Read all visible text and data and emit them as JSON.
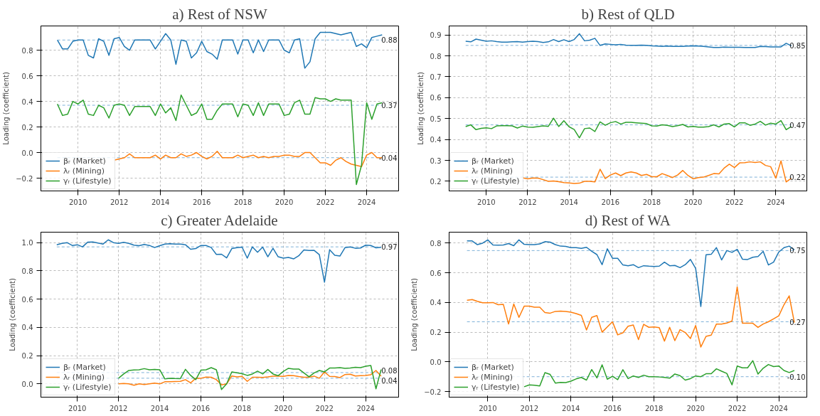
{
  "chart_data": [
    {
      "type": "line",
      "title": "a) Rest of NSW",
      "ylabel": "Loading (coefficient)",
      "grid": true,
      "legend": "bottom left",
      "marker": "none",
      "line_style": "solid",
      "xlim": [
        2008.2,
        2025.55
      ],
      "xticks": [
        2010,
        2012,
        2014,
        2016,
        2018,
        2020,
        2022,
        2024
      ],
      "ylim": [
        -0.3,
        0.99
      ],
      "yticks": [
        {
          "value": -0.2,
          "label": "−0.2"
        },
        {
          "value": 0,
          "label": "0.0"
        },
        0.2,
        0.4,
        0.6,
        0.8
      ],
      "x": [
        2009,
        2009.25,
        2009.5,
        2009.75,
        2010,
        2010.25,
        2010.5,
        2010.75,
        2011,
        2011.25,
        2011.5,
        2011.75,
        2012,
        2012.25,
        2012.5,
        2012.75,
        2013,
        2013.25,
        2013.5,
        2013.75,
        2014,
        2014.25,
        2014.5,
        2014.75,
        2015,
        2015.25,
        2015.5,
        2015.75,
        2016,
        2016.25,
        2016.5,
        2016.75,
        2017,
        2017.25,
        2017.5,
        2017.75,
        2018,
        2018.25,
        2018.5,
        2018.75,
        2019,
        2019.25,
        2019.5,
        2019.75,
        2020,
        2020.25,
        2020.5,
        2020.75,
        2021,
        2021.25,
        2021.5,
        2021.75,
        2022,
        2022.25,
        2022.5,
        2022.75,
        2023,
        2023.25,
        2023.5,
        2023.75,
        2024,
        2024.25,
        2024.5,
        2024.75
      ],
      "series": [
        {
          "name": "βᵣ (Market)",
          "color": "#1f77b4",
          "values": [
            0.88,
            0.81,
            0.81,
            0.87,
            0.88,
            0.88,
            0.76,
            0.74,
            0.89,
            0.87,
            0.76,
            0.89,
            0.9,
            0.83,
            0.8,
            0.88,
            0.88,
            0.88,
            0.88,
            0.81,
            0.87,
            0.93,
            0.88,
            0.69,
            0.88,
            0.87,
            0.74,
            0.78,
            0.87,
            0.79,
            0.77,
            0.73,
            0.88,
            0.88,
            0.88,
            0.77,
            0.88,
            0.88,
            0.78,
            0.88,
            0.79,
            0.88,
            0.88,
            0.88,
            0.8,
            0.78,
            0.88,
            0.89,
            0.66,
            0.71,
            0.89,
            0.94,
            0.94,
            0.94,
            0.93,
            0.92,
            0.93,
            0.94,
            0.83,
            0.85,
            0.82,
            0.9,
            0.91,
            0.92
          ]
        },
        {
          "name": "λᵣ (Mining)",
          "color": "#ff7f0e",
          "values": [
            null,
            null,
            null,
            null,
            null,
            null,
            null,
            null,
            null,
            null,
            null,
            -0.06,
            -0.05,
            -0.04,
            -0.01,
            -0.04,
            -0.04,
            -0.04,
            -0.04,
            -0.02,
            -0.05,
            -0.02,
            -0.04,
            -0.04,
            -0.01,
            -0.03,
            -0.02,
            0.0,
            -0.03,
            -0.05,
            -0.03,
            0.01,
            -0.04,
            -0.04,
            -0.04,
            -0.02,
            -0.04,
            -0.03,
            -0.02,
            -0.04,
            -0.03,
            -0.04,
            -0.03,
            -0.03,
            -0.02,
            -0.02,
            -0.03,
            -0.03,
            0.0,
            0.0,
            -0.04,
            -0.08,
            -0.08,
            -0.1,
            -0.06,
            -0.04,
            -0.07,
            -0.09,
            -0.1,
            -0.11,
            -0.02,
            0.0,
            -0.04,
            -0.04
          ]
        },
        {
          "name": "γᵣ (Lifestyle)",
          "color": "#2ca02c",
          "values": [
            0.38,
            0.29,
            0.3,
            0.4,
            0.38,
            0.41,
            0.3,
            0.29,
            0.37,
            0.35,
            0.27,
            0.37,
            0.38,
            0.37,
            0.29,
            0.36,
            0.36,
            0.36,
            0.36,
            0.29,
            0.38,
            0.31,
            0.35,
            0.25,
            0.45,
            0.37,
            0.29,
            0.31,
            0.38,
            0.26,
            0.26,
            0.33,
            0.38,
            0.38,
            0.38,
            0.28,
            0.38,
            0.37,
            0.29,
            0.39,
            0.29,
            0.38,
            0.38,
            0.38,
            0.29,
            0.3,
            0.39,
            0.41,
            0.3,
            0.3,
            0.43,
            0.42,
            0.42,
            0.4,
            0.42,
            0.41,
            0.41,
            0.41,
            -0.25,
            -0.1,
            0.39,
            0.26,
            0.38,
            0.39
          ]
        }
      ],
      "ref_lines": [
        {
          "axis": "y",
          "value": 0.88,
          "label": "0.88",
          "color": "#7fb2d8",
          "line_style": "dashed"
        },
        {
          "axis": "y",
          "value": 0.37,
          "label": "0.37",
          "color": "#7fb2d8",
          "line_style": "dashed"
        },
        {
          "axis": "y",
          "value": -0.04,
          "label": "-0.04",
          "color": "#7fb2d8",
          "line_style": "dashed"
        }
      ]
    },
    {
      "type": "line",
      "title": "b) Rest of QLD",
      "ylabel": "Loading (coefficient)",
      "grid": true,
      "legend": "bottom left",
      "marker": "none",
      "line_style": "solid",
      "xlim": [
        2008.2,
        2025.5
      ],
      "xticks": [
        2010,
        2012,
        2014,
        2016,
        2018,
        2020,
        2022,
        2024
      ],
      "ylim": [
        0.154,
        0.943
      ],
      "yticks": [
        0.2,
        0.3,
        0.4,
        0.5,
        0.6,
        0.7,
        0.8,
        0.9
      ],
      "x": [
        2009,
        2009.25,
        2009.5,
        2009.75,
        2010,
        2010.25,
        2010.5,
        2010.75,
        2011,
        2011.25,
        2011.5,
        2011.75,
        2012,
        2012.25,
        2012.5,
        2012.75,
        2013,
        2013.25,
        2013.5,
        2013.75,
        2014,
        2014.25,
        2014.5,
        2014.75,
        2015,
        2015.25,
        2015.5,
        2015.75,
        2016,
        2016.25,
        2016.5,
        2016.75,
        2017,
        2017.25,
        2017.5,
        2017.75,
        2018,
        2018.25,
        2018.5,
        2018.75,
        2019,
        2019.25,
        2019.5,
        2019.75,
        2020,
        2020.25,
        2020.5,
        2020.75,
        2021,
        2021.25,
        2021.5,
        2021.75,
        2022,
        2022.25,
        2022.5,
        2022.75,
        2023,
        2023.25,
        2023.5,
        2023.75,
        2024,
        2024.25,
        2024.5,
        2024.75
      ],
      "series": [
        {
          "name": "βᵣ (Market)",
          "color": "#1f77b4",
          "values": [
            0.87,
            0.867,
            0.88,
            0.875,
            0.87,
            0.872,
            0.868,
            0.866,
            0.866,
            0.867,
            0.868,
            0.866,
            0.868,
            0.87,
            0.868,
            0.864,
            0.867,
            0.878,
            0.868,
            0.877,
            0.868,
            0.878,
            0.906,
            0.872,
            0.875,
            0.884,
            0.85,
            0.857,
            0.855,
            0.853,
            0.855,
            0.851,
            0.85,
            0.85,
            0.851,
            0.85,
            0.848,
            0.847,
            0.845,
            0.847,
            0.845,
            0.845,
            0.845,
            0.847,
            0.848,
            0.847,
            0.845,
            0.843,
            0.84,
            0.84,
            0.842,
            0.841,
            0.841,
            0.841,
            0.84,
            0.84,
            0.84,
            0.845,
            0.844,
            0.843,
            0.843,
            0.843,
            0.86,
            0.848
          ]
        },
        {
          "name": "λᵣ (Mining)",
          "color": "#ff7f0e",
          "values": [
            null,
            null,
            null,
            null,
            null,
            null,
            null,
            null,
            null,
            null,
            null,
            0.217,
            0.212,
            0.216,
            0.215,
            0.208,
            0.2,
            0.202,
            0.198,
            0.194,
            0.192,
            0.19,
            0.191,
            0.2,
            0.2,
            0.197,
            0.258,
            0.213,
            0.23,
            0.24,
            0.227,
            0.24,
            0.245,
            0.24,
            0.228,
            0.233,
            0.222,
            0.222,
            0.237,
            0.228,
            0.218,
            0.23,
            0.252,
            0.228,
            0.212,
            0.218,
            0.22,
            0.228,
            0.237,
            0.236,
            0.263,
            0.282,
            0.266,
            0.288,
            0.289,
            0.293,
            0.29,
            0.293,
            0.276,
            0.27,
            0.215,
            0.298,
            0.197,
            0.215
          ]
        },
        {
          "name": "γᵣ (Lifestyle)",
          "color": "#2ca02c",
          "values": [
            0.462,
            0.47,
            0.447,
            0.453,
            0.456,
            0.452,
            0.465,
            0.466,
            0.466,
            0.465,
            0.455,
            0.464,
            0.459,
            0.458,
            0.462,
            0.465,
            0.463,
            0.502,
            0.462,
            0.49,
            0.461,
            0.448,
            0.408,
            0.452,
            0.455,
            0.438,
            0.484,
            0.468,
            0.48,
            0.486,
            0.474,
            0.482,
            0.482,
            0.48,
            0.478,
            0.476,
            0.465,
            0.464,
            0.47,
            0.468,
            0.462,
            0.466,
            0.472,
            0.46,
            0.463,
            0.459,
            0.459,
            0.462,
            0.47,
            0.46,
            0.474,
            0.476,
            0.46,
            0.48,
            0.48,
            0.468,
            0.474,
            0.487,
            0.469,
            0.478,
            0.474,
            0.49,
            0.447,
            0.462
          ]
        }
      ],
      "ref_lines": [
        {
          "axis": "y",
          "value": 0.85,
          "label": "0.85",
          "color": "#7fb2d8",
          "line_style": "dashed"
        },
        {
          "axis": "y",
          "value": 0.47,
          "label": "0.47",
          "color": "#7fb2d8",
          "line_style": "dashed"
        },
        {
          "axis": "y",
          "value": 0.22,
          "label": "0.22",
          "color": "#7fb2d8",
          "line_style": "dashed"
        }
      ]
    },
    {
      "type": "line",
      "title": "c) Greater Adelaide",
      "ylabel": "Loading (coefficient)",
      "grid": true,
      "legend": "bottom left",
      "marker": "none",
      "line_style": "solid",
      "xlim": [
        2008.23,
        2025.6
      ],
      "xticks": [
        2010,
        2012,
        2014,
        2016,
        2018,
        2020,
        2022,
        2024
      ],
      "ylim": [
        -0.094,
        1.074
      ],
      "yticks": [
        {
          "value": 0,
          "label": "0.0"
        },
        0.2,
        0.4,
        0.6,
        0.8,
        {
          "value": 1,
          "label": "1.0"
        }
      ],
      "x": [
        2009,
        2009.25,
        2009.5,
        2009.75,
        2010,
        2010.25,
        2010.5,
        2010.75,
        2011,
        2011.25,
        2011.5,
        2011.75,
        2012,
        2012.25,
        2012.5,
        2012.75,
        2013,
        2013.25,
        2013.5,
        2013.75,
        2014,
        2014.25,
        2014.5,
        2014.75,
        2015,
        2015.25,
        2015.5,
        2015.75,
        2016,
        2016.25,
        2016.5,
        2016.75,
        2017,
        2017.25,
        2017.5,
        2017.75,
        2018,
        2018.25,
        2018.5,
        2018.75,
        2019,
        2019.25,
        2019.5,
        2019.75,
        2020,
        2020.25,
        2020.5,
        2020.75,
        2021,
        2021.25,
        2021.5,
        2021.75,
        2022,
        2022.25,
        2022.5,
        2022.75,
        2023,
        2023.25,
        2023.5,
        2023.75,
        2024,
        2024.25,
        2024.5,
        2024.75
      ],
      "series": [
        {
          "name": "βᵣ (Market)",
          "color": "#1f77b4",
          "values": [
            0.985,
            0.995,
            1.0,
            0.98,
            0.985,
            0.97,
            1.003,
            1.005,
            0.997,
            0.99,
            1.02,
            1.0,
            0.995,
            1.002,
            0.995,
            0.982,
            0.978,
            0.987,
            0.98,
            0.965,
            0.978,
            0.99,
            0.992,
            0.99,
            0.99,
            0.985,
            0.953,
            0.958,
            0.98,
            0.98,
            0.965,
            0.917,
            0.918,
            0.892,
            0.958,
            0.965,
            0.968,
            0.89,
            0.97,
            0.932,
            0.968,
            0.9,
            0.96,
            0.9,
            0.89,
            0.895,
            0.885,
            0.907,
            0.948,
            0.944,
            0.945,
            0.915,
            0.72,
            0.95,
            0.91,
            0.905,
            0.965,
            0.97,
            0.96,
            0.962,
            0.982,
            0.98,
            0.963,
            0.967
          ]
        },
        {
          "name": "λᵣ (Mining)",
          "color": "#ff7f0e",
          "values": [
            null,
            null,
            null,
            null,
            null,
            null,
            null,
            null,
            null,
            null,
            null,
            null,
            0.0,
            0.003,
            0.0,
            -0.01,
            0.0,
            -0.005,
            0.0,
            0.005,
            0.0,
            0.015,
            0.015,
            0.017,
            0.018,
            0.03,
            0.007,
            0.04,
            0.04,
            0.048,
            0.047,
            0.03,
            -0.007,
            0.0,
            0.056,
            0.05,
            0.053,
            0.018,
            0.047,
            0.047,
            0.046,
            0.05,
            0.055,
            0.055,
            0.053,
            0.06,
            0.058,
            0.052,
            0.047,
            0.047,
            0.055,
            0.04,
            0.085,
            0.053,
            0.052,
            0.045,
            0.066,
            0.068,
            0.056,
            0.058,
            0.06,
            0.065,
            0.095,
            0.055
          ]
        },
        {
          "name": "γᵣ (Lifestyle)",
          "color": "#2ca02c",
          "values": [
            null,
            null,
            null,
            null,
            null,
            null,
            null,
            null,
            null,
            null,
            null,
            null,
            0.04,
            0.07,
            0.095,
            0.098,
            0.1,
            0.108,
            0.1,
            0.102,
            0.1,
            0.035,
            0.04,
            0.038,
            0.037,
            0.103,
            0.06,
            0.03,
            0.097,
            0.1,
            0.115,
            0.1,
            -0.04,
            0.0,
            0.085,
            0.078,
            0.072,
            0.06,
            0.07,
            0.09,
            0.07,
            0.102,
            0.07,
            0.058,
            0.088,
            0.11,
            0.105,
            0.105,
            0.078,
            0.05,
            0.078,
            0.095,
            0.085,
            0.112,
            0.113,
            0.115,
            0.11,
            0.112,
            0.118,
            0.115,
            0.125,
            0.13,
            -0.035,
            0.102
          ]
        }
      ],
      "ref_lines": [
        {
          "axis": "y",
          "value": 0.97,
          "label": "0.97",
          "color": "#7fb2d8",
          "line_style": "dashed"
        },
        {
          "axis": "y",
          "value": 0.08,
          "label": "0.08",
          "color": "#7fb2d8",
          "line_style": "dashed"
        },
        {
          "axis": "y",
          "value": 0.04,
          "label": "0.04",
          "color": "#7fb2d8",
          "line_style": "dashed"
        }
      ]
    },
    {
      "type": "line",
      "title": "d) Rest of WA",
      "ylabel": "Loading (coefficient)",
      "grid": true,
      "legend": "bottom left",
      "marker": "none",
      "line_style": "solid",
      "xlim": [
        2008.14,
        2025.35
      ],
      "xticks": [
        2010,
        2012,
        2014,
        2016,
        2018,
        2020,
        2022,
        2024
      ],
      "ylim": [
        -0.238,
        0.874
      ],
      "yticks": [
        {
          "value": -0.2,
          "label": "−0.2"
        },
        {
          "value": 0,
          "label": "0.0"
        },
        0.2,
        0.4,
        0.6,
        0.8
      ],
      "x": [
        2009,
        2009.25,
        2009.5,
        2009.75,
        2010,
        2010.25,
        2010.5,
        2010.75,
        2011,
        2011.25,
        2011.5,
        2011.75,
        2012,
        2012.25,
        2012.5,
        2012.75,
        2013,
        2013.25,
        2013.5,
        2013.75,
        2014,
        2014.25,
        2014.5,
        2014.75,
        2015,
        2015.25,
        2015.5,
        2015.75,
        2016,
        2016.25,
        2016.5,
        2016.75,
        2017,
        2017.25,
        2017.5,
        2017.75,
        2018,
        2018.25,
        2018.5,
        2018.75,
        2019,
        2019.25,
        2019.5,
        2019.75,
        2020,
        2020.25,
        2020.5,
        2020.75,
        2021,
        2021.25,
        2021.5,
        2021.75,
        2022,
        2022.25,
        2022.5,
        2022.75,
        2023,
        2023.25,
        2023.5,
        2023.75,
        2024,
        2024.25,
        2024.5,
        2024.75
      ],
      "series": [
        {
          "name": "βᵣ (Market)",
          "color": "#1f77b4",
          "values": [
            0.815,
            0.815,
            0.79,
            0.8,
            0.822,
            0.788,
            0.787,
            0.788,
            0.797,
            0.783,
            0.822,
            0.792,
            0.79,
            0.79,
            0.795,
            0.81,
            0.807,
            0.79,
            0.78,
            0.778,
            0.77,
            0.77,
            0.765,
            0.772,
            0.745,
            0.723,
            0.655,
            0.762,
            0.698,
            0.698,
            0.653,
            0.648,
            0.655,
            0.635,
            0.648,
            0.645,
            0.643,
            0.645,
            0.672,
            0.648,
            0.65,
            0.635,
            0.655,
            0.69,
            0.63,
            0.373,
            0.722,
            0.725,
            0.77,
            0.687,
            0.75,
            0.738,
            0.758,
            0.692,
            0.69,
            0.705,
            0.71,
            0.745,
            0.653,
            0.672,
            0.74,
            0.77,
            0.78,
            0.755
          ]
        },
        {
          "name": "λᵣ (Mining)",
          "color": "#ff7f0e",
          "values": [
            0.415,
            0.42,
            0.408,
            0.398,
            0.398,
            0.4,
            0.385,
            0.387,
            0.255,
            0.39,
            0.3,
            0.375,
            0.375,
            0.368,
            0.368,
            0.332,
            0.328,
            0.34,
            0.342,
            0.34,
            0.335,
            0.325,
            0.313,
            0.215,
            0.3,
            0.312,
            0.2,
            0.235,
            0.27,
            0.182,
            0.196,
            0.24,
            0.248,
            0.15,
            0.253,
            0.233,
            0.235,
            0.23,
            0.14,
            0.233,
            0.143,
            0.217,
            0.198,
            0.157,
            0.245,
            0.1,
            0.172,
            0.18,
            0.255,
            0.255,
            0.262,
            0.275,
            0.505,
            0.26,
            0.26,
            0.26,
            0.232,
            0.255,
            0.27,
            0.29,
            0.31,
            0.385,
            0.445,
            0.265
          ]
        },
        {
          "name": "γᵣ (Lifestyle)",
          "color": "#2ca02c",
          "values": [
            null,
            null,
            null,
            null,
            null,
            null,
            null,
            null,
            null,
            null,
            null,
            -0.168,
            -0.155,
            -0.158,
            -0.163,
            -0.073,
            -0.085,
            -0.143,
            -0.138,
            -0.14,
            -0.13,
            -0.115,
            -0.105,
            -0.123,
            -0.052,
            -0.108,
            -0.02,
            -0.117,
            -0.097,
            -0.12,
            -0.053,
            -0.113,
            -0.095,
            -0.105,
            -0.09,
            -0.1,
            -0.1,
            -0.102,
            -0.105,
            -0.11,
            -0.082,
            -0.093,
            -0.123,
            -0.113,
            -0.095,
            -0.1,
            -0.08,
            -0.08,
            -0.047,
            -0.063,
            -0.078,
            -0.155,
            -0.028,
            -0.04,
            -0.04,
            0.008,
            -0.082,
            -0.043,
            -0.018,
            -0.032,
            -0.028,
            -0.058,
            -0.072,
            -0.058
          ]
        }
      ],
      "ref_lines": [
        {
          "axis": "y",
          "value": 0.75,
          "label": "0.75",
          "color": "#7fb2d8",
          "line_style": "dashed"
        },
        {
          "axis": "y",
          "value": 0.27,
          "label": "0.27",
          "color": "#7fb2d8",
          "line_style": "dashed"
        },
        {
          "axis": "y",
          "value": -0.1,
          "label": "-0.10",
          "color": "#7fb2d8",
          "line_style": "dashed"
        }
      ]
    }
  ]
}
